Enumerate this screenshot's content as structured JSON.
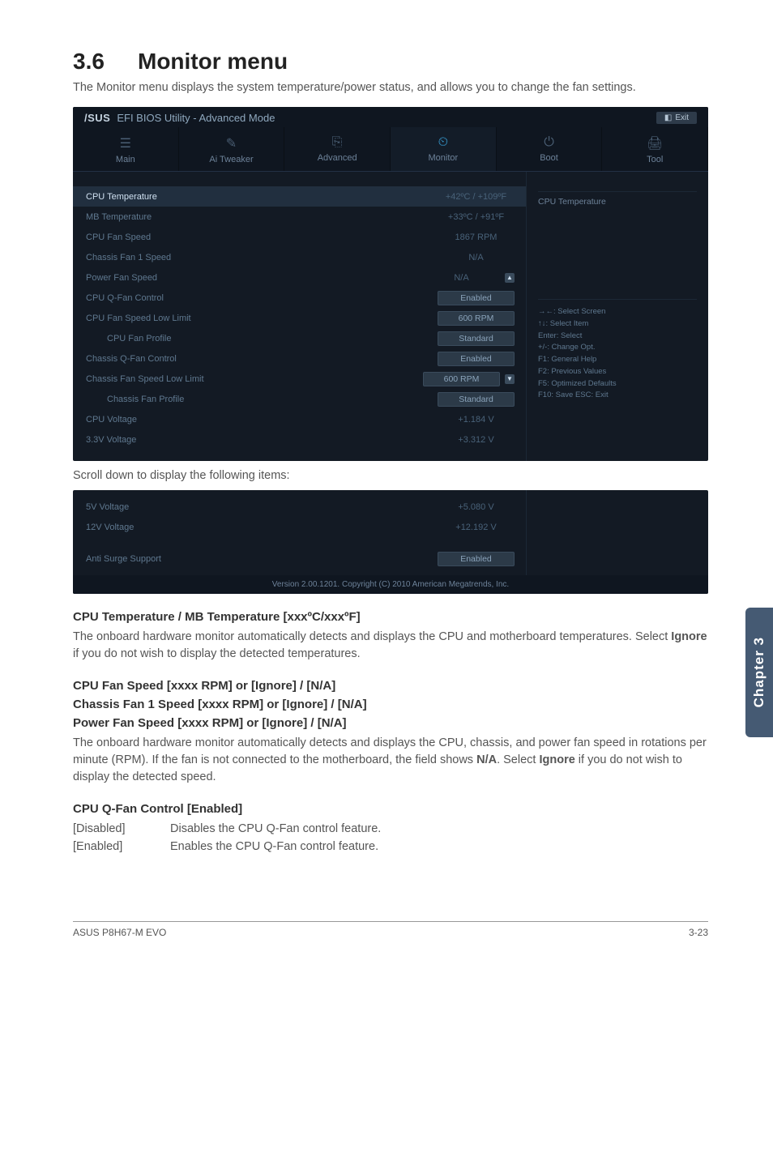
{
  "title_num": "3.6",
  "title_text": "Monitor menu",
  "intro": "The Monitor menu displays the system temperature/power status, and allows you to change the fan settings.",
  "bios": {
    "topbar": {
      "logo_brand": "/SUS",
      "logo_text": "EFI BIOS Utility - Advanced Mode",
      "exit": "Exit"
    },
    "tabs": [
      {
        "icon": "☰",
        "label": "Main"
      },
      {
        "icon": "✎",
        "label": "Ai Tweaker"
      },
      {
        "icon": "⎘",
        "label": "Advanced"
      },
      {
        "icon": "⏲",
        "label": "Monitor",
        "active": true
      },
      {
        "icon": "⏻",
        "label": "Boot"
      },
      {
        "icon": "🖨",
        "label": "Tool"
      }
    ],
    "rows": [
      {
        "label": "CPU Temperature",
        "value": "+42ºC / +109ºF",
        "selected": true,
        "box": false
      },
      {
        "label": "MB Temperature",
        "value": "+33ºC / +91ºF",
        "box": false
      },
      {
        "label": "CPU Fan Speed",
        "value": "1867 RPM",
        "box": false
      },
      {
        "label": "Chassis Fan 1 Speed",
        "value": "N/A",
        "box": false
      },
      {
        "label": "Power Fan Speed",
        "value": "N/A",
        "box": false,
        "scroll_up": true
      },
      {
        "label": "CPU Q-Fan Control",
        "value": "Enabled",
        "box": true
      },
      {
        "label": "CPU Fan Speed Low Limit",
        "value": "600 RPM",
        "box": true
      },
      {
        "label": "CPU Fan Profile",
        "value": "Standard",
        "box": true,
        "indent": true
      },
      {
        "label": "Chassis Q-Fan Control",
        "value": "Enabled",
        "box": true
      },
      {
        "label": "Chassis Fan Speed Low Limit",
        "value": "600 RPM",
        "box": true,
        "scroll_down": true
      },
      {
        "label": "Chassis Fan Profile",
        "value": "Standard",
        "box": true,
        "indent": true
      },
      {
        "label": "CPU Voltage",
        "value": "+1.184 V",
        "box": false
      },
      {
        "label": "3.3V Voltage",
        "value": "+3.312 V",
        "box": false
      }
    ],
    "right_title": "CPU Temperature",
    "help": "→←: Select Screen\n↑↓: Select Item\nEnter: Select\n+/-: Change Opt.\nF1: General Help\nF2: Previous Values\nF5: Optimized Defaults\nF10: Save   ESC: Exit"
  },
  "scroll_note": "Scroll down to display the following items:",
  "bios2": {
    "rows": [
      {
        "label": "5V Voltage",
        "value": "+5.080 V",
        "box": false
      },
      {
        "label": "12V Voltage",
        "value": "+12.192 V",
        "box": false
      },
      {
        "label": "",
        "value": "",
        "box": false,
        "gap": true
      },
      {
        "label": "Anti Surge Support",
        "value": "Enabled",
        "box": true
      }
    ],
    "version": "Version 2.00.1201.  Copyright (C) 2010 American Megatrends, Inc."
  },
  "sec1": {
    "h": "CPU Temperature / MB Temperature [xxxºC/xxxºF]",
    "p": "The onboard hardware monitor automatically detects and displays the CPU and motherboard temperatures. Select Ignore if you do not wish to display the detected temperatures."
  },
  "sec2": {
    "h1": "CPU Fan Speed [xxxx RPM] or [Ignore] / [N/A]",
    "h2": "Chassis Fan 1 Speed [xxxx RPM] or [Ignore] / [N/A]",
    "h3": "Power Fan Speed [xxxx RPM] or [Ignore] / [N/A]",
    "p": "The onboard hardware monitor automatically detects and displays the CPU, chassis, and power fan speed in rotations per minute (RPM). If the fan is not connected to the motherboard, the field shows N/A. Select Ignore if you do not wish to display the detected speed."
  },
  "sec3": {
    "h": "CPU Q-Fan Control [Enabled]",
    "opts": [
      {
        "k": "[Disabled]",
        "v": "Disables the CPU Q-Fan control feature."
      },
      {
        "k": "[Enabled]",
        "v": "Enables the CPU Q-Fan control feature."
      }
    ]
  },
  "sidebar": "Chapter 3",
  "footer_left": "ASUS P8H67-M EVO",
  "footer_right": "3-23"
}
